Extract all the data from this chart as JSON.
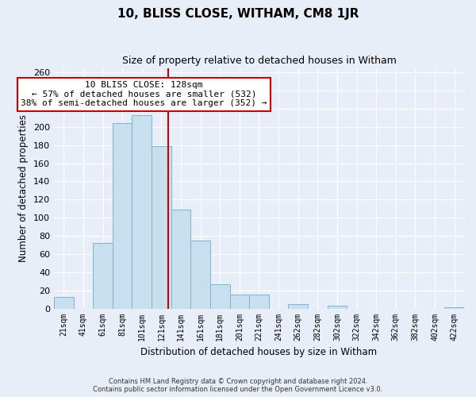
{
  "title": "10, BLISS CLOSE, WITHAM, CM8 1JR",
  "subtitle": "Size of property relative to detached houses in Witham",
  "xlabel": "Distribution of detached houses by size in Witham",
  "ylabel": "Number of detached properties",
  "bar_labels": [
    "21sqm",
    "41sqm",
    "61sqm",
    "81sqm",
    "101sqm",
    "121sqm",
    "141sqm",
    "161sqm",
    "181sqm",
    "201sqm",
    "221sqm",
    "241sqm",
    "262sqm",
    "282sqm",
    "302sqm",
    "322sqm",
    "342sqm",
    "362sqm",
    "382sqm",
    "402sqm",
    "422sqm"
  ],
  "bar_values": [
    13,
    0,
    72,
    204,
    213,
    179,
    109,
    75,
    27,
    15,
    15,
    0,
    5,
    0,
    3,
    0,
    0,
    0,
    0,
    0,
    1
  ],
  "bar_color": "#c8dff0",
  "bar_edge_color": "#7fb3d3",
  "vline_color": "#cc0000",
  "annotation_title": "10 BLISS CLOSE: 128sqm",
  "annotation_line1": "← 57% of detached houses are smaller (532)",
  "annotation_line2": "38% of semi-detached houses are larger (352) →",
  "annotation_box_color": "#ffffff",
  "annotation_border_color": "#cc0000",
  "ylim": [
    0,
    265
  ],
  "yticks": [
    0,
    20,
    40,
    60,
    80,
    100,
    120,
    140,
    160,
    180,
    200,
    220,
    240,
    260
  ],
  "footer_line1": "Contains HM Land Registry data © Crown copyright and database right 2024.",
  "footer_line2": "Contains public sector information licensed under the Open Government Licence v3.0.",
  "bg_color": "#e8eef8"
}
